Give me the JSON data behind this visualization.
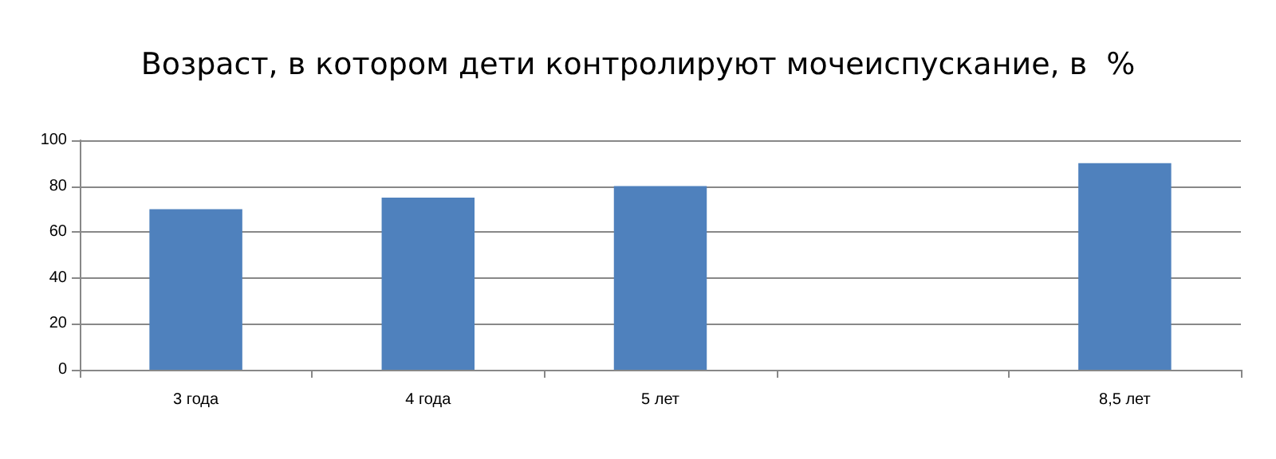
{
  "chart_data": {
    "type": "bar",
    "title": "Возраст, в котором дети контролируют мочеиспускание, в  %",
    "categories": [
      "3 года",
      "4 года",
      "5 лет",
      null,
      "8,5 лет"
    ],
    "values": [
      70,
      75,
      80,
      null,
      90
    ],
    "color": "#4f81bd",
    "ylim": [
      0,
      100
    ],
    "yticks": [
      0,
      20,
      40,
      60,
      80,
      100
    ],
    "grid": "y"
  }
}
